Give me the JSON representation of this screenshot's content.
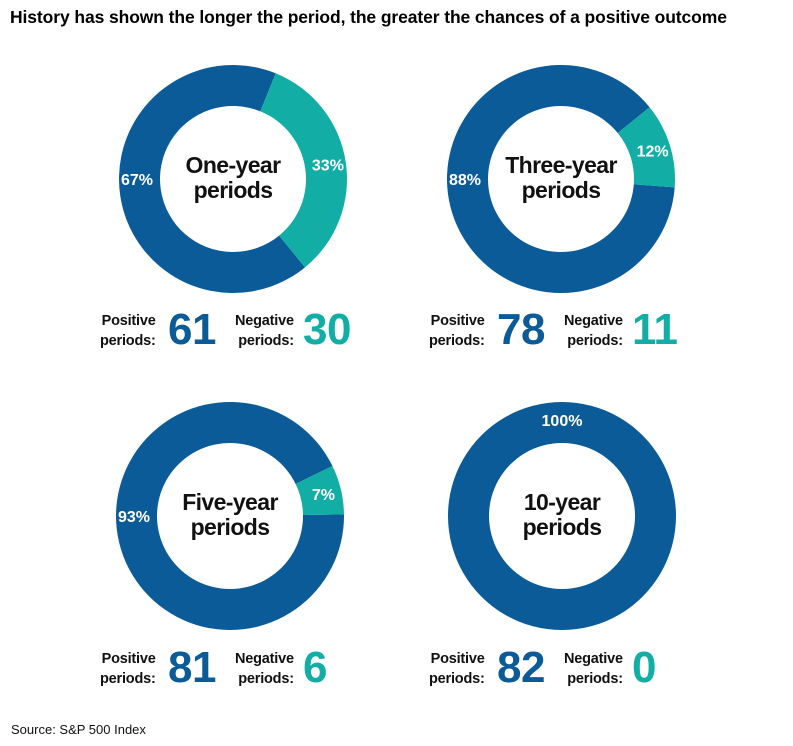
{
  "title": "History has shown the longer the period, the greater the chances of a positive outcome",
  "source": "Source: S&P 500 Index",
  "colors": {
    "positive": "#0a5b97",
    "negative": "#12aea5"
  },
  "labels": {
    "positive": [
      "Positive",
      "periods:"
    ],
    "negative": [
      "Negative",
      "periods:"
    ]
  },
  "chart_data": [
    {
      "type": "pie",
      "center_label": [
        "One-year",
        "periods"
      ],
      "slices": [
        {
          "name": "Positive",
          "value": 67,
          "label": "67%"
        },
        {
          "name": "Negative",
          "value": 33,
          "label": "33%"
        }
      ],
      "positive_count": "61",
      "negative_count": "30"
    },
    {
      "type": "pie",
      "center_label": [
        "Three-year",
        "periods"
      ],
      "slices": [
        {
          "name": "Positive",
          "value": 88,
          "label": "88%"
        },
        {
          "name": "Negative",
          "value": 12,
          "label": "12%"
        }
      ],
      "positive_count": "78",
      "negative_count": "11"
    },
    {
      "type": "pie",
      "center_label": [
        "Five-year",
        "periods"
      ],
      "slices": [
        {
          "name": "Positive",
          "value": 93,
          "label": "93%"
        },
        {
          "name": "Negative",
          "value": 7,
          "label": "7%"
        }
      ],
      "positive_count": "81",
      "negative_count": "6"
    },
    {
      "type": "pie",
      "center_label": [
        "10-year",
        "periods"
      ],
      "slices": [
        {
          "name": "Positive",
          "value": 100,
          "label": "100%"
        },
        {
          "name": "Negative",
          "value": 0,
          "label": ""
        }
      ],
      "positive_count": "82",
      "negative_count": "0"
    }
  ]
}
